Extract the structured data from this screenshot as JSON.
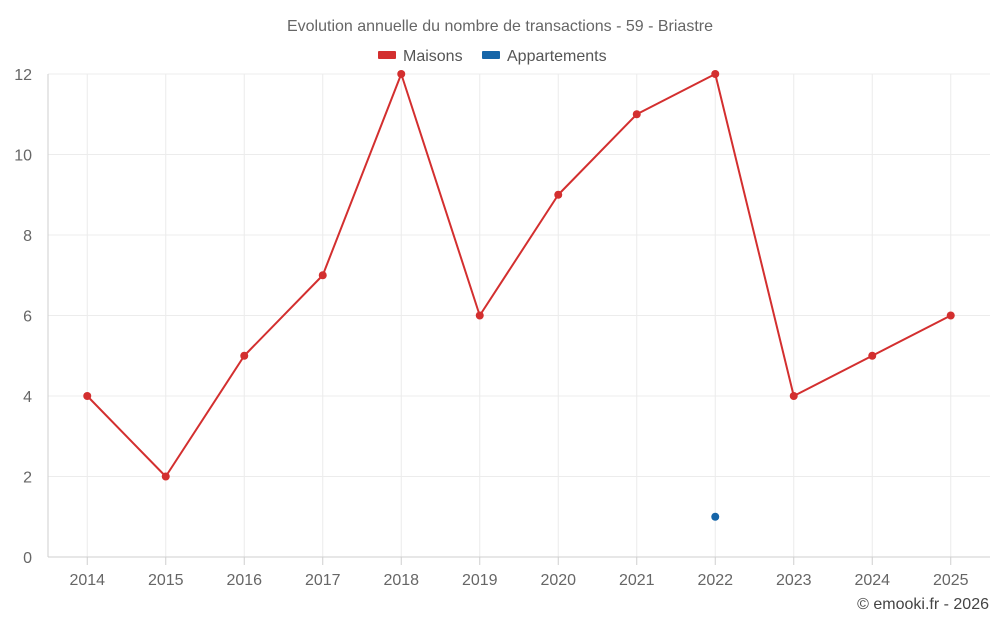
{
  "chart_data": {
    "type": "line",
    "title": "Evolution annuelle du nombre de transactions - 59 - Briastre",
    "categories": [
      "2014",
      "2015",
      "2016",
      "2017",
      "2018",
      "2019",
      "2020",
      "2021",
      "2022",
      "2023",
      "2024",
      "2025"
    ],
    "ylim": [
      0,
      12
    ],
    "yticks": [
      0,
      2,
      4,
      6,
      8,
      10,
      12
    ],
    "grid": true,
    "legend_position": "top-center",
    "series": [
      {
        "name": "Maisons",
        "color": "#d32f2f",
        "values": [
          4,
          2,
          5,
          7,
          12,
          6,
          9,
          11,
          12,
          4,
          5,
          6
        ]
      },
      {
        "name": "Appartements",
        "color": "#1565a8",
        "values": [
          null,
          null,
          null,
          null,
          null,
          null,
          null,
          null,
          1,
          null,
          null,
          null
        ]
      }
    ],
    "credit": "© emooki.fr - 2026"
  }
}
